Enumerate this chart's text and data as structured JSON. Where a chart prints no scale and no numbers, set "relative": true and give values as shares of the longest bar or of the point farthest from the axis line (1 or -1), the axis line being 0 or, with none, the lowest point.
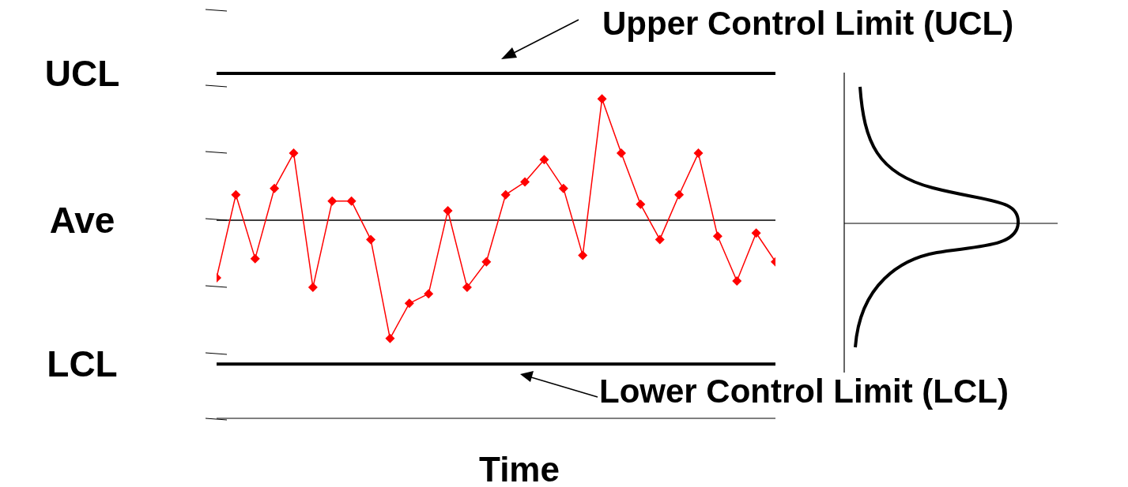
{
  "chart_data": {
    "type": "line",
    "xlabel": "Time",
    "relative": true,
    "marker": "diamond",
    "line_style": "solid",
    "categories": [
      null,
      null,
      null,
      null,
      null,
      null,
      null,
      null,
      null,
      null,
      null,
      null,
      null,
      null,
      null,
      null,
      null,
      null,
      null,
      null,
      null,
      null,
      null,
      null,
      null,
      null,
      null,
      null,
      null,
      null
    ],
    "series": [
      {
        "color": "#ff0000",
        "values": [
          0.44,
          0.7,
          0.5,
          0.72,
          0.83,
          0.41,
          0.68,
          0.68,
          0.56,
          0.25,
          0.36,
          0.39,
          0.65,
          0.41,
          0.49,
          0.7,
          0.74,
          0.81,
          0.72,
          0.51,
          1,
          0.83,
          0.67,
          0.56,
          0.7,
          0.83,
          0.57,
          0.43,
          0.58,
          0.49
        ]
      }
    ],
    "ref_lines": [
      {
        "axis": "y",
        "value": 1.08,
        "label": "UCL",
        "color": "#000000"
      },
      {
        "axis": "y",
        "value": 0.62,
        "label": "Ave",
        "color": "#000000"
      },
      {
        "axis": "y",
        "value": 0.17,
        "label": "LCL",
        "color": "#000000"
      }
    ],
    "annotations": [
      "Upper Control Limit (UCL)",
      "Lower Control Limit (LCL)"
    ]
  }
}
